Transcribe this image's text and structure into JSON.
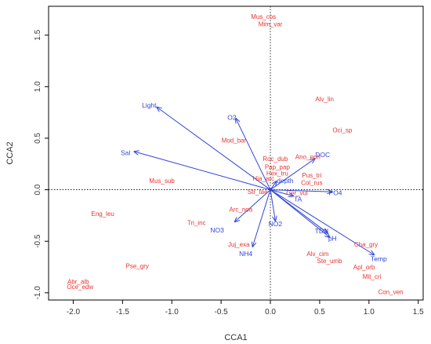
{
  "chart_data": {
    "type": "scatter",
    "title": "",
    "xlabel": "CCA1",
    "ylabel": "CCA2",
    "xlim": [
      -2.25,
      1.55
    ],
    "ylim": [
      -1.07,
      1.78
    ],
    "xticks": [
      -2.0,
      -1.5,
      -1.0,
      -0.5,
      0.0,
      0.5,
      1.0,
      1.5
    ],
    "yticks": [
      -1.0,
      -0.5,
      0.0,
      0.5,
      1.0,
      1.5
    ],
    "xtick_labels": [
      "-2.0",
      "-1.5",
      "-1.0",
      "-0.5",
      "0.0",
      "0.5",
      "1.0",
      "1.5"
    ],
    "ytick_labels": [
      "-1.0",
      "-0.5",
      "0.0",
      "0.5",
      "1.0",
      "1.5"
    ],
    "reference_lines": {
      "x": 0,
      "y": 0,
      "style": "dotted"
    },
    "colors": {
      "species": "#e8332f",
      "env": "#2f45d8",
      "axis": "#000000"
    },
    "species": [
      {
        "label": "Mus_cos",
        "x": -0.07,
        "y": 1.68
      },
      {
        "label": "Mim_var",
        "x": 0.0,
        "y": 1.61
      },
      {
        "label": "Alv_lin",
        "x": 0.55,
        "y": 0.88
      },
      {
        "label": "Oci_sp",
        "x": 0.73,
        "y": 0.58
      },
      {
        "label": "Mod_bar",
        "x": -0.37,
        "y": 0.48
      },
      {
        "label": "Ano_eph",
        "x": 0.38,
        "y": 0.32
      },
      {
        "label": "Roc_dub",
        "x": 0.05,
        "y": 0.3
      },
      {
        "label": "Pap_pap",
        "x": 0.07,
        "y": 0.22
      },
      {
        "label": "Hex_tru",
        "x": 0.07,
        "y": 0.16
      },
      {
        "label": "Pus_tri",
        "x": 0.42,
        "y": 0.14
      },
      {
        "label": "Hia_arc",
        "x": -0.07,
        "y": 0.11
      },
      {
        "label": "Col_rus",
        "x": 0.42,
        "y": 0.07
      },
      {
        "label": "Mus_sub",
        "x": -1.1,
        "y": 0.09
      },
      {
        "label": "Str_tae",
        "x": -0.13,
        "y": -0.02
      },
      {
        "label": "Cer_vul",
        "x": 0.27,
        "y": -0.03
      },
      {
        "label": "Arc_noa",
        "x": -0.3,
        "y": -0.19
      },
      {
        "label": "Eng_leu",
        "x": -1.7,
        "y": -0.23
      },
      {
        "label": "Tri_inc",
        "x": -0.75,
        "y": -0.32
      },
      {
        "label": "Juj_exa",
        "x": -0.32,
        "y": -0.53
      },
      {
        "label": "Cha_gry",
        "x": 0.97,
        "y": -0.53
      },
      {
        "label": "Alv_cim",
        "x": 0.48,
        "y": -0.62
      },
      {
        "label": "Ste_umb",
        "x": 0.6,
        "y": -0.69
      },
      {
        "label": "Pse_gry",
        "x": -1.35,
        "y": -0.74
      },
      {
        "label": "Apl_orb",
        "x": 0.95,
        "y": -0.75
      },
      {
        "label": "Mit_cri",
        "x": 1.03,
        "y": -0.84
      },
      {
        "label": "Abr_alb",
        "x": -1.95,
        "y": -0.89
      },
      {
        "label": "Oce_edw",
        "x": -1.93,
        "y": -0.94
      },
      {
        "label": "Con_ven",
        "x": 1.22,
        "y": -0.99
      }
    ],
    "env_vectors": [
      {
        "label": "Light",
        "x": -1.15,
        "y": 0.8,
        "lx": -1.23,
        "ly": 0.82
      },
      {
        "label": "Sal",
        "x": -1.38,
        "y": 0.37,
        "lx": -1.47,
        "ly": 0.36
      },
      {
        "label": "O2",
        "x": -0.35,
        "y": 0.69,
        "lx": -0.39,
        "ly": 0.7
      },
      {
        "label": "DOC",
        "x": 0.45,
        "y": 0.3,
        "lx": 0.53,
        "ly": 0.34
      },
      {
        "label": "depth",
        "x": 0.06,
        "y": 0.08,
        "lx": 0.15,
        "ly": 0.09
      },
      {
        "label": "PO4",
        "x": 0.62,
        "y": -0.02,
        "lx": 0.66,
        "ly": -0.03
      },
      {
        "label": "TA",
        "x": 0.23,
        "y": -0.06,
        "lx": 0.28,
        "ly": -0.09
      },
      {
        "label": "NO2",
        "x": 0.05,
        "y": -0.3,
        "lx": 0.05,
        "ly": -0.33
      },
      {
        "label": "NO3",
        "x": -0.36,
        "y": -0.31,
        "lx": -0.54,
        "ly": -0.39
      },
      {
        "label": "NH4",
        "x": -0.18,
        "y": -0.55,
        "lx": -0.25,
        "ly": -0.62
      },
      {
        "label": "TDN",
        "x": 0.58,
        "y": -0.42,
        "lx": 0.52,
        "ly": -0.4
      },
      {
        "label": "pH",
        "x": 0.6,
        "y": -0.46,
        "lx": 0.63,
        "ly": -0.47
      },
      {
        "label": "Temp",
        "x": 1.05,
        "y": -0.63,
        "lx": 1.1,
        "ly": -0.67
      }
    ]
  }
}
